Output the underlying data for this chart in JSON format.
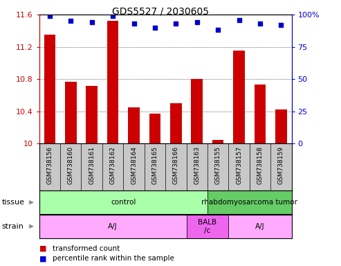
{
  "title": "GDS5527 / 2030605",
  "samples": [
    "GSM738156",
    "GSM738160",
    "GSM738161",
    "GSM738162",
    "GSM738164",
    "GSM738165",
    "GSM738166",
    "GSM738163",
    "GSM738155",
    "GSM738157",
    "GSM738158",
    "GSM738159"
  ],
  "bar_values": [
    11.35,
    10.77,
    10.72,
    11.52,
    10.45,
    10.37,
    10.5,
    10.8,
    10.05,
    11.15,
    10.73,
    10.42
  ],
  "dot_values": [
    99,
    95,
    94,
    99,
    93,
    90,
    93,
    94,
    88,
    96,
    93,
    92
  ],
  "ylim": [
    10.0,
    11.6
  ],
  "yticks": [
    10.0,
    10.4,
    10.8,
    11.2,
    11.6
  ],
  "y2ticks": [
    0,
    25,
    50,
    75,
    100
  ],
  "bar_color": "#cc0000",
  "dot_color": "#0000cc",
  "sample_box_color": "#c8c8c8",
  "tissue_colors": [
    "#aaffaa",
    "#66cc66"
  ],
  "tissue_labels": [
    "control",
    "rhabdomyosarcoma tumor"
  ],
  "tissue_starts": [
    0,
    8
  ],
  "tissue_ends": [
    8,
    12
  ],
  "strain_colors": [
    "#ffaaff",
    "#ee66ee",
    "#ffaaff"
  ],
  "strain_labels": [
    "A/J",
    "BALB\n/c",
    "A/J"
  ],
  "strain_starts": [
    0,
    7,
    9
  ],
  "strain_ends": [
    7,
    9,
    12
  ],
  "tissue_row_label": "tissue",
  "strain_row_label": "strain",
  "legend": [
    {
      "color": "#cc0000",
      "label": "transformed count"
    },
    {
      "color": "#0000cc",
      "label": "percentile rank within the sample"
    }
  ],
  "left_color": "#cc0000",
  "right_color": "#0000cc",
  "bg_color": "#ffffff"
}
